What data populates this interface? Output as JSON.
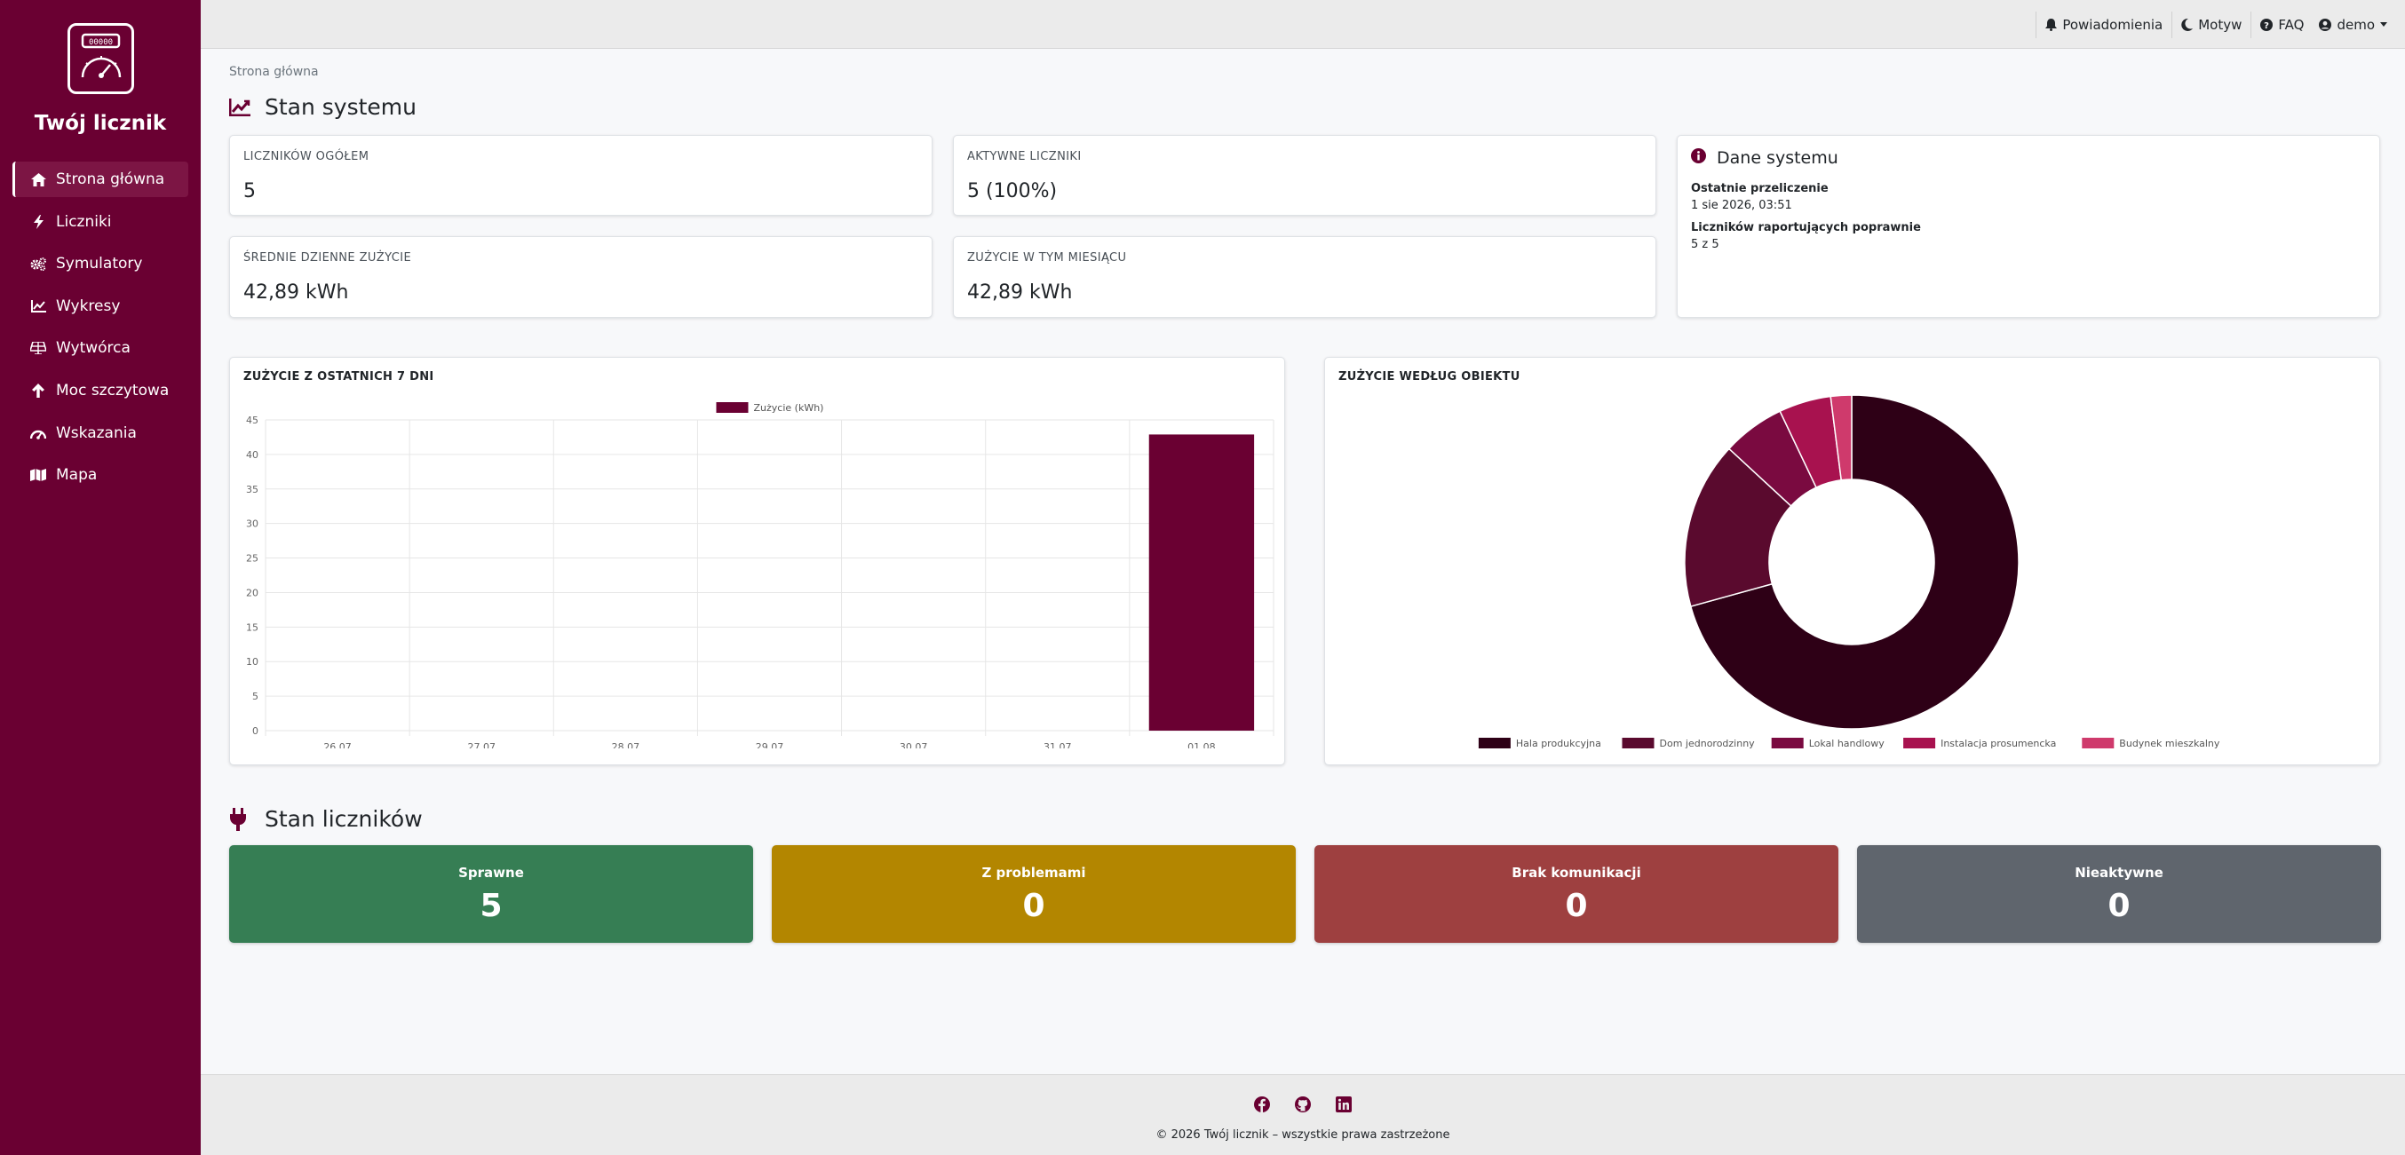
{
  "app": {
    "brand": "Twój licznik",
    "logo_counter": "00000"
  },
  "sidebar": {
    "items": [
      {
        "label": "Strona główna",
        "icon": "home-icon",
        "active": true
      },
      {
        "label": "Liczniki",
        "icon": "bolt-icon"
      },
      {
        "label": "Symulatory",
        "icon": "cogs-icon"
      },
      {
        "label": "Wykresy",
        "icon": "chart-line-icon"
      },
      {
        "label": "Wytwórca",
        "icon": "solar-panel-icon"
      },
      {
        "label": "Moc szczytowa",
        "icon": "arrow-up-icon"
      },
      {
        "label": "Wskazania",
        "icon": "gauge-icon"
      },
      {
        "label": "Mapa",
        "icon": "map-icon"
      }
    ]
  },
  "topbar": {
    "notifications": "Powiadomienia",
    "theme": "Motyw",
    "faq": "FAQ",
    "user": "demo"
  },
  "breadcrumb": "Strona główna",
  "system_section": {
    "title": "Stan systemu"
  },
  "stats": {
    "total_label": "LICZNIKÓW OGÓŁEM",
    "total_value": "5",
    "active_label": "AKTYWNE LICZNIKI",
    "active_value": "5 (100%)",
    "daily_label": "ŚREDNIE DZIENNE ZUŻYCIE",
    "daily_value": "42,89 kWh",
    "month_label": "ZUŻYCIE W TYM MIESIĄCU",
    "month_value": "42,89 kWh"
  },
  "system_data": {
    "title": "Dane systemu",
    "last_recalc_label": "Ostatnie przeliczenie",
    "last_recalc_value": "1 sie 2026, 03:51",
    "reporting_label": "Liczników raportujących poprawnie",
    "reporting_value": "5 z 5"
  },
  "bar_chart_title": "ZUŻYCIE Z OSTATNICH 7 DNI",
  "donut_chart_title": "ZUŻYCIE WEDŁUG OBIEKTU",
  "chart_data": [
    {
      "type": "bar",
      "categories": [
        "26.07",
        "27.07",
        "28.07",
        "29.07",
        "30.07",
        "31.07",
        "01.08"
      ],
      "series": [
        {
          "name": "Zużycie (kWh)",
          "values": [
            0,
            0,
            0,
            0,
            0,
            0,
            42.89
          ],
          "color": "#6a0032"
        }
      ],
      "ylim": [
        0,
        45
      ],
      "yticks": [
        0,
        5,
        10,
        15,
        20,
        25,
        30,
        35,
        40,
        45
      ],
      "grid": true,
      "legend": "top"
    },
    {
      "type": "pie",
      "categories": [
        "Hala produkcyjna",
        "Dom jednorodzinny",
        "Lokal handlowy",
        "Instalacja prosumencka",
        "Budynek mieszkalny"
      ],
      "values": [
        70,
        16,
        6,
        5,
        2
      ],
      "colors": [
        "#2e0016",
        "#5a0a2e",
        "#7a0a40",
        "#a8124f",
        "#cf3a6c"
      ],
      "legend": "bottom"
    }
  ],
  "meters_section": {
    "title": "Stan liczników"
  },
  "meter_status": [
    {
      "label": "Sprawne",
      "value": "5",
      "color": "#367e54"
    },
    {
      "label": "Z problemami",
      "value": "0",
      "color": "#b38600"
    },
    {
      "label": "Brak komunikacji",
      "value": "0",
      "color": "#9e4040"
    },
    {
      "label": "Nieaktywne",
      "value": "0",
      "color": "#5f656d"
    }
  ],
  "footer": {
    "icons": [
      "facebook-icon",
      "github-icon",
      "linkedin-icon"
    ],
    "text": "© 2026 Twój licznik – wszystkie prawa zastrzeżone"
  }
}
